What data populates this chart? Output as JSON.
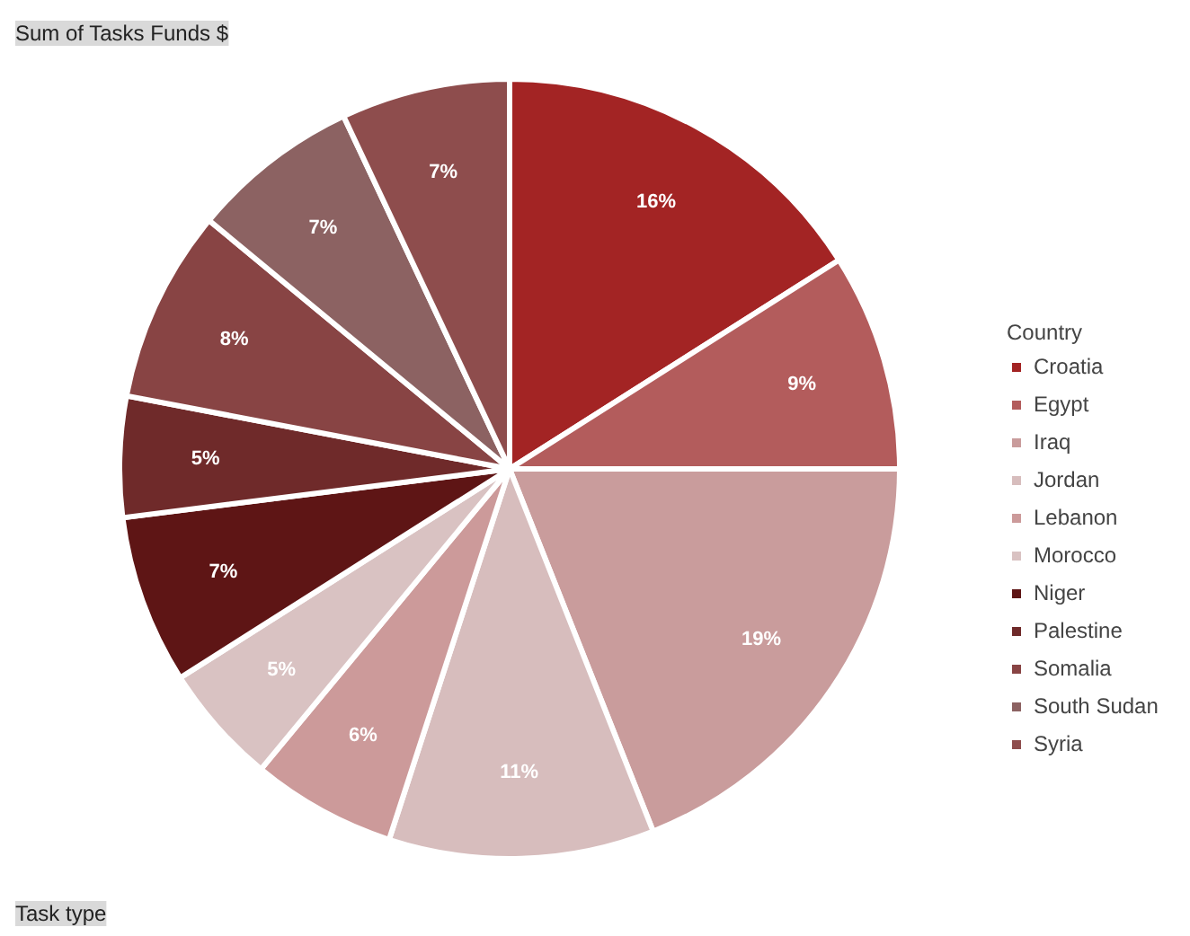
{
  "chart_data": {
    "type": "pie",
    "categories": [
      "Croatia",
      "Egypt",
      "Iraq",
      "Jordan",
      "Lebanon",
      "Morocco",
      "Niger",
      "Palestine",
      "Somalia",
      "South Sudan",
      "Syria"
    ],
    "values": [
      16,
      9,
      19,
      11,
      6,
      5,
      7,
      5,
      8,
      7,
      7
    ],
    "value_labels": [
      "16%",
      "9%",
      "19%",
      "11%",
      "6%",
      "5%",
      "7%",
      "5%",
      "8%",
      "7%",
      "7%"
    ],
    "colors": [
      "#a32424",
      "#b35c5c",
      "#c99c9c",
      "#d7bdbd",
      "#cc9a9a",
      "#d9c2c2",
      "#5e1515",
      "#6f2a2a",
      "#884444",
      "#8c6262",
      "#8e4d4d"
    ],
    "legend_title": "Country",
    "legend": "right",
    "annotations": [
      "Sum of Tasks Funds $",
      "Task type"
    ]
  }
}
